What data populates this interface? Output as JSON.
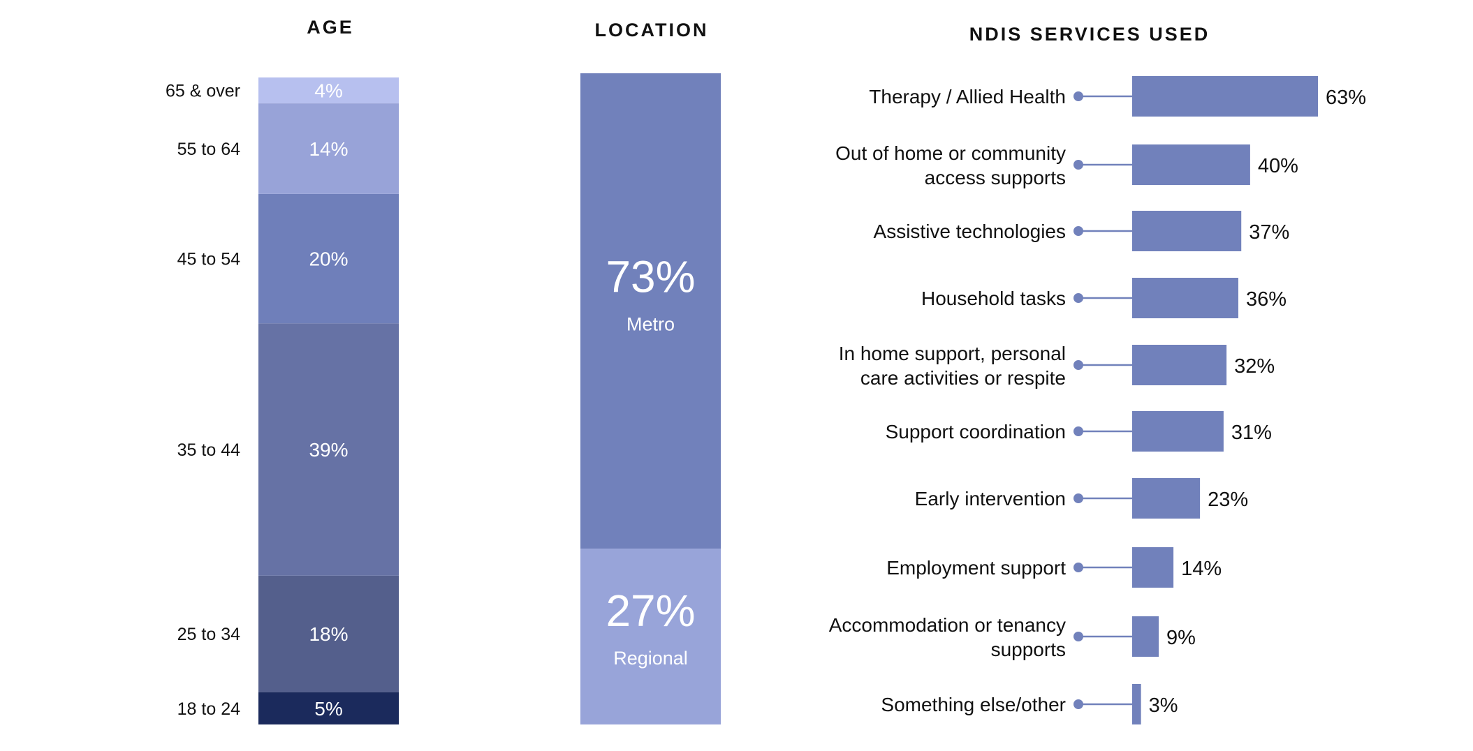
{
  "chart_data": [
    {
      "type": "bar",
      "stacked": true,
      "title": "AGE",
      "categories": [
        "18 to 24",
        "25 to 34",
        "35 to 44",
        "45 to 54",
        "55 to 64",
        "65 & over"
      ],
      "values": [
        5,
        18,
        39,
        20,
        14,
        4
      ],
      "value_labels": [
        "5%",
        "18%",
        "39%",
        "20%",
        "14%",
        "4%"
      ],
      "colors": [
        "#1b2a5c",
        "#545f8c",
        "#6672a5",
        "#6f7fba",
        "#98a3d8",
        "#b7c0ef"
      ]
    },
    {
      "type": "bar",
      "stacked": true,
      "title": "LOCATION",
      "categories": [
        "Metro",
        "Regional"
      ],
      "values": [
        73,
        27
      ],
      "value_labels": [
        "73%",
        "27%"
      ],
      "colors": [
        "#7181bb",
        "#98a4d9"
      ]
    },
    {
      "type": "bar",
      "orientation": "horizontal",
      "title": "NDIS SERVICES USED",
      "categories": [
        [
          "Therapy / Allied Health"
        ],
        [
          "Out of home or community",
          "access supports"
        ],
        [
          "Assistive technologies"
        ],
        [
          "Household tasks"
        ],
        [
          "In home support, personal",
          "care activities or respite"
        ],
        [
          "Support coordination"
        ],
        [
          "Early intervention"
        ],
        [
          "Employment support"
        ],
        [
          "Accommodation or tenancy",
          "supports"
        ],
        [
          "Something else/other"
        ]
      ],
      "values": [
        63,
        40,
        37,
        36,
        32,
        31,
        23,
        14,
        9,
        3
      ],
      "value_labels": [
        "63%",
        "40%",
        "37%",
        "36%",
        "32%",
        "31%",
        "23%",
        "14%",
        "9%",
        "3%"
      ],
      "bar_color": "#7181bb"
    }
  ]
}
